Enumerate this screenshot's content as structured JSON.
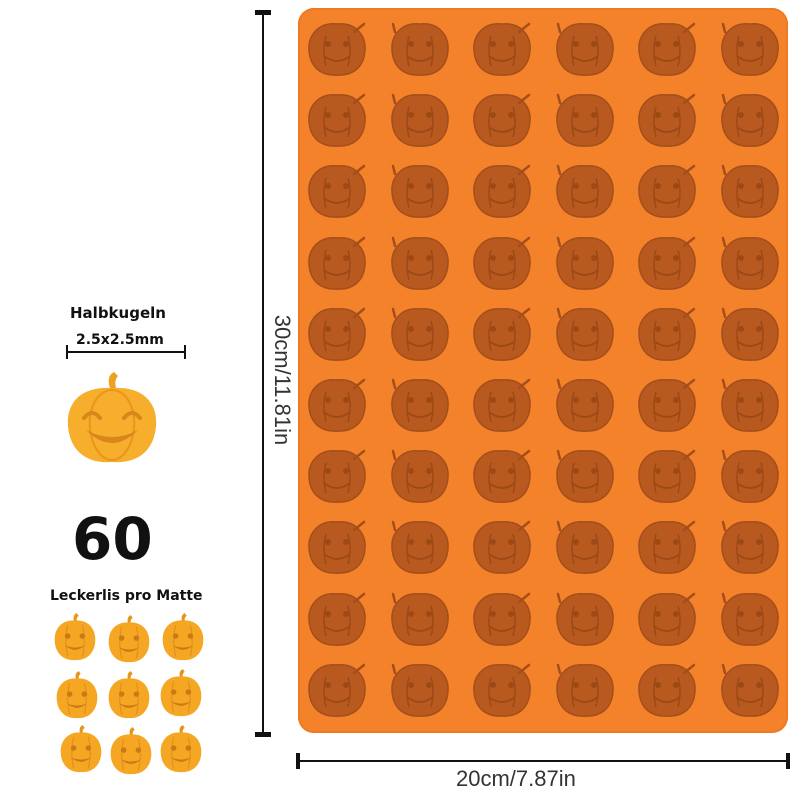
{
  "halbkugeln_label": "Halbkugeln",
  "size_label": "2.5x2.5mm",
  "count": "60",
  "count_label": "Leckerlis pro Matte",
  "height_label": "30cm/11.81in",
  "width_label": "20cm/7.87in",
  "colors": {
    "mat": "#f4822b",
    "cavity": "#b85a20",
    "pumpkin": "#f5a623"
  },
  "mat": {
    "columns": 6,
    "rows": 10
  },
  "mini_pumpkin_faces": [
    "smile",
    "grin",
    "angry",
    "smile",
    "zigzag",
    "grumpy",
    "square",
    "surprised",
    "toothy"
  ]
}
